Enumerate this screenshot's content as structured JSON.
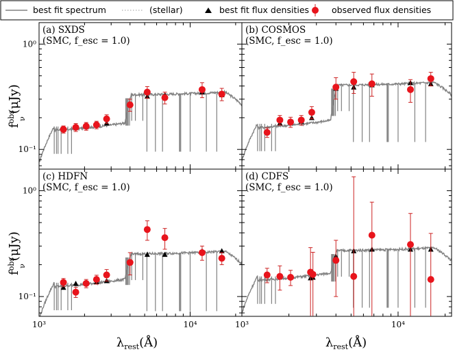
{
  "legend": {
    "entries": [
      {
        "label": "best fit spectrum",
        "style": "gray-line"
      },
      {
        "label": "(stellar)",
        "style": "dotted-line"
      },
      {
        "label": "best fit flux densities",
        "style": "black-triangle"
      },
      {
        "label": "observed flux densities",
        "style": "red-circle-errorbar"
      }
    ],
    "placement": "top"
  },
  "axes": {
    "ylabel": "f_ν^obs (μJy)",
    "xlabel": "λ_rest (Å)",
    "y_ticks": [
      "10⁰",
      "10⁻¹"
    ],
    "x_ticks": [
      "10³",
      "10⁴"
    ],
    "xlim": [
      1000,
      22000
    ],
    "ylim": [
      0.065,
      1.6
    ],
    "scale": "log-log"
  },
  "colors": {
    "spectrum": "#808080",
    "model": "#000000",
    "observed": "#e8141c",
    "errorbar": "#cc2222"
  },
  "chart_data": [
    {
      "type": "scatter",
      "panel": "a",
      "title": "(a) SXDS",
      "subtitle": "(SMC, f_esc = 1.0)",
      "spectrum": {
        "lyman_break": 1260,
        "balmer_break": 3700,
        "blue_level": 0.165,
        "red_level": 0.34
      },
      "model": {
        "x": [
          1450,
          1750,
          2050,
          2400,
          2800,
          4000,
          5200,
          6800,
          12000,
          16200
        ],
        "y": [
          0.155,
          0.165,
          0.17,
          0.173,
          0.178,
          0.27,
          0.32,
          0.33,
          0.35,
          0.33
        ]
      },
      "observed": {
        "x": [
          1450,
          1750,
          2050,
          2400,
          2800,
          4000,
          5200,
          6800,
          12000,
          16200
        ],
        "y": [
          0.155,
          0.162,
          0.166,
          0.171,
          0.195,
          0.265,
          0.35,
          0.31,
          0.37,
          0.335
        ],
        "err": [
          0.012,
          0.014,
          0.014,
          0.014,
          0.018,
          0.035,
          0.045,
          0.04,
          0.06,
          0.045
        ]
      }
    },
    {
      "type": "scatter",
      "panel": "b",
      "title": "(b) COSMOS",
      "subtitle": "(SMC, f_esc = 1.0)",
      "spectrum": {
        "lyman_break": 1260,
        "balmer_break": 3700,
        "blue_level": 0.175,
        "red_level": 0.42
      },
      "model": {
        "x": [
          1450,
          1750,
          2050,
          2400,
          2800,
          4000,
          5200,
          6800,
          12000,
          16200
        ],
        "y": [
          0.15,
          0.178,
          0.181,
          0.185,
          0.2,
          0.38,
          0.39,
          0.41,
          0.43,
          0.42
        ]
      },
      "observed": {
        "x": [
          1450,
          1750,
          2050,
          2400,
          2800,
          4000,
          5200,
          6800,
          12000,
          16200
        ],
        "y": [
          0.145,
          0.19,
          0.182,
          0.19,
          0.225,
          0.39,
          0.44,
          0.42,
          0.37,
          0.47
        ],
        "err": [
          0.015,
          0.02,
          0.02,
          0.02,
          0.03,
          0.09,
          0.1,
          0.1,
          0.09,
          0.07
        ]
      }
    },
    {
      "type": "scatter",
      "panel": "c",
      "title": "(c) HDFN",
      "subtitle": "(SMC, f_esc = 1.0)",
      "spectrum": {
        "lyman_break": 1260,
        "balmer_break": 3700,
        "blue_level": 0.135,
        "red_level": 0.26
      },
      "model": {
        "x": [
          1450,
          1750,
          2050,
          2400,
          2800,
          4000,
          5200,
          6800,
          12000,
          16200
        ],
        "y": [
          0.122,
          0.133,
          0.136,
          0.138,
          0.141,
          0.21,
          0.25,
          0.25,
          0.27,
          0.27
        ]
      },
      "observed": {
        "x": [
          1450,
          1750,
          2050,
          2400,
          2800,
          4000,
          5200,
          6800,
          12000,
          16200
        ],
        "y": [
          0.136,
          0.11,
          0.133,
          0.145,
          0.16,
          0.21,
          0.43,
          0.36,
          0.26,
          0.23
        ],
        "err": [
          0.012,
          0.012,
          0.012,
          0.014,
          0.02,
          0.05,
          0.09,
          0.08,
          0.04,
          0.03
        ]
      }
    },
    {
      "type": "scatter",
      "panel": "d",
      "title": "(d) CDFS",
      "subtitle": "(SMC, f_esc = 1.0)",
      "spectrum": {
        "lyman_break": 1260,
        "balmer_break": 3700,
        "blue_level": 0.155,
        "red_level": 0.28
      },
      "model": {
        "x": [
          1450,
          1750,
          2050,
          2750,
          2850,
          4000,
          5200,
          6800,
          12000,
          16200
        ],
        "y": [
          0.16,
          0.156,
          0.155,
          0.15,
          0.152,
          0.24,
          0.27,
          0.28,
          0.28,
          0.28
        ]
      },
      "observed": {
        "x": [
          1450,
          1750,
          2050,
          2750,
          2850,
          4000,
          5200,
          6800,
          12000,
          16200
        ],
        "y": [
          0.16,
          0.155,
          0.152,
          0.17,
          0.162,
          0.22,
          0.155,
          0.38,
          0.31,
          0.145
        ],
        "err": [
          0.025,
          0.04,
          0.025,
          0.12,
          0.1,
          0.12,
          1.2,
          0.4,
          0.3,
          0.25
        ]
      }
    }
  ]
}
